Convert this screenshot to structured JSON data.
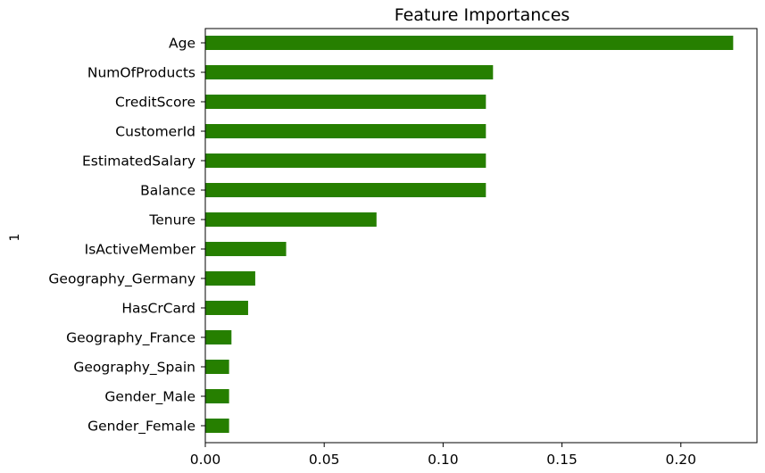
{
  "chart_data": {
    "type": "bar",
    "orientation": "horizontal",
    "title": "Feature Importances",
    "xlabel": "",
    "ylabel": "1",
    "categories": [
      "Age",
      "NumOfProducts",
      "CreditScore",
      "CustomerId",
      "EstimatedSalary",
      "Balance",
      "Tenure",
      "IsActiveMember",
      "Geography_Germany",
      "HasCrCard",
      "Geography_France",
      "Geography_Spain",
      "Gender_Male",
      "Gender_Female"
    ],
    "values": [
      0.222,
      0.121,
      0.118,
      0.118,
      0.118,
      0.118,
      0.072,
      0.034,
      0.021,
      0.018,
      0.011,
      0.01,
      0.01,
      0.01
    ],
    "xlim": [
      0,
      0.232
    ],
    "xticks": [
      0.0,
      0.05,
      0.1,
      0.15,
      0.2
    ],
    "xtick_labels": [
      "0.00",
      "0.05",
      "0.10",
      "0.15",
      "0.20"
    ],
    "bar_color": "#267f00",
    "grid": false,
    "legend": "none"
  }
}
